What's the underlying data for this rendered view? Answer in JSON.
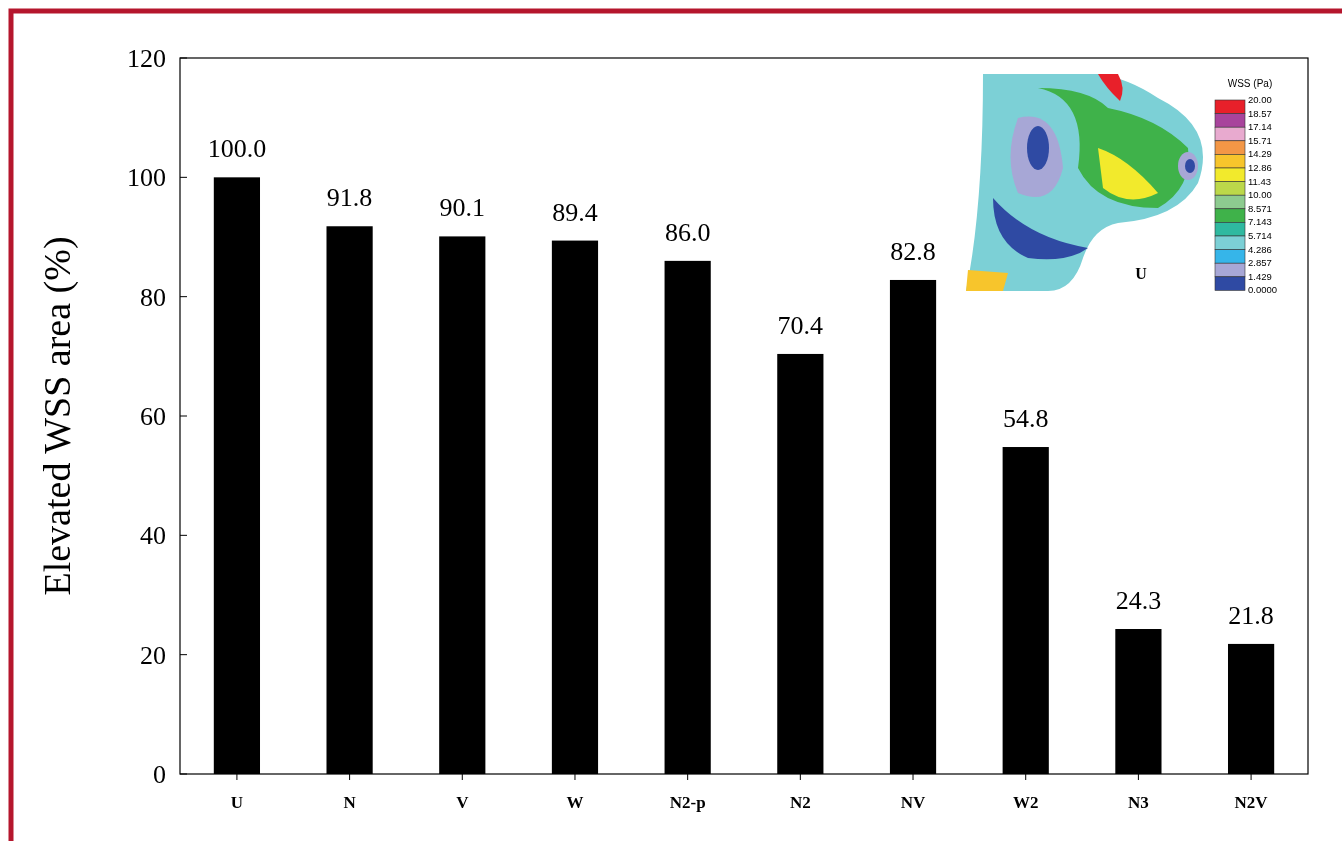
{
  "chart_data": {
    "type": "bar",
    "ylabel": "Elevated WSS area (%)",
    "categories": [
      "U",
      "N",
      "V",
      "W",
      "N2-p",
      "N2",
      "NV",
      "W2",
      "N3",
      "N2V"
    ],
    "values": [
      100.0,
      91.8,
      90.1,
      89.4,
      86.0,
      70.4,
      82.8,
      54.8,
      24.3,
      21.8
    ],
    "value_labels": [
      "100.0",
      "91.8",
      "90.1",
      "89.4",
      "86.0",
      "70.4",
      "82.8",
      "54.8",
      "24.3",
      "21.8"
    ],
    "color": "#000000",
    "ylim": [
      0,
      120
    ],
    "yticks": [
      0,
      20,
      40,
      60,
      80,
      100,
      120
    ],
    "grid": false,
    "annotations": [
      "WSS (Pa)",
      "20.00",
      "18.57",
      "17.14",
      "15.71",
      "14.29",
      "12.86",
      "11.43",
      "10.00",
      "8.571",
      "7.143",
      "5.714",
      "4.286",
      "2.857",
      "1.429",
      "0.0000",
      "U"
    ]
  }
}
